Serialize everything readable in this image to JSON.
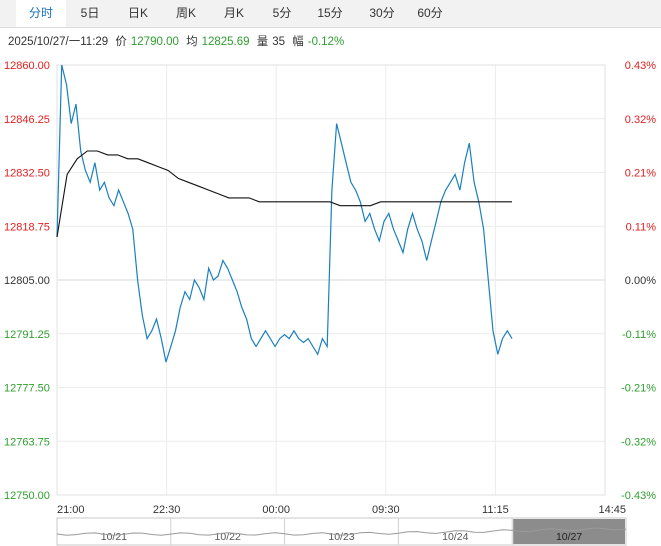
{
  "tabs": [
    {
      "label": "分时",
      "active": true
    },
    {
      "label": "5日",
      "active": false
    },
    {
      "label": "日K",
      "active": false
    },
    {
      "label": "周K",
      "active": false
    },
    {
      "label": "月K",
      "active": false
    },
    {
      "label": "5分",
      "active": false
    },
    {
      "label": "15分",
      "active": false
    },
    {
      "label": "30分",
      "active": false
    },
    {
      "label": "60分",
      "active": false
    }
  ],
  "info": {
    "datetime": "2025/10/27/一11:29",
    "price_label": "价",
    "price": "12790.00",
    "avg_label": "均",
    "avg": "12825.69",
    "vol_label": "量",
    "vol": "35",
    "chg_label": "幅",
    "chg": "-0.12%"
  },
  "colors": {
    "up": "#e02020",
    "down": "#2e9e2e",
    "flat": "#333333",
    "price_line": "#1a7fc0",
    "avg_line": "#111111"
  },
  "chart_data": {
    "type": "line",
    "y_left_ticks": [
      "12860.00",
      "12846.25",
      "12832.50",
      "12818.75",
      "12805.00",
      "12791.25",
      "12777.50",
      "12763.75",
      "12750.00"
    ],
    "y_right_ticks": [
      "0.43%",
      "0.32%",
      "0.21%",
      "0.11%",
      "0.00%",
      "-0.11%",
      "-0.21%",
      "-0.32%",
      "-0.43%"
    ],
    "x_ticks": [
      "21:00",
      "22:30",
      "00:00",
      "09:30",
      "11:15",
      "14:45"
    ],
    "ylim": [
      12750,
      12860
    ],
    "series": [
      {
        "role": "price",
        "values": [
          12816,
          12860,
          12855,
          12845,
          12850,
          12838,
          12833,
          12830,
          12835,
          12828,
          12830,
          12826,
          12824,
          12828,
          12825,
          12822,
          12818,
          12805,
          12796,
          12790,
          12792,
          12795,
          12790,
          12784,
          12788,
          12792,
          12798,
          12802,
          12800,
          12805,
          12803,
          12800,
          12808,
          12805,
          12806,
          12810,
          12808,
          12805,
          12802,
          12798,
          12795,
          12790,
          12788,
          12790,
          12792,
          12790,
          12788,
          12790,
          12791,
          12790,
          12792,
          12790,
          12789,
          12790,
          12788,
          12786,
          12790,
          12788,
          12828,
          12845,
          12840,
          12835,
          12830,
          12828,
          12825,
          12820,
          12822,
          12818,
          12815,
          12820,
          12822,
          12818,
          12815,
          12812,
          12818,
          12822,
          12818,
          12815,
          12810,
          12815,
          12820,
          12825,
          12828,
          12830,
          12832,
          12828,
          12835,
          12840,
          12830,
          12825,
          12818,
          12805,
          12792,
          12786,
          12790,
          12792,
          12790
        ]
      },
      {
        "role": "average",
        "values": [
          12816,
          12832,
          12836,
          12838,
          12838,
          12837,
          12837,
          12836,
          12836,
          12835,
          12834,
          12833,
          12831,
          12830,
          12829,
          12828,
          12827,
          12826,
          12826,
          12826,
          12825,
          12825,
          12825,
          12825,
          12825,
          12825,
          12825,
          12825,
          12824,
          12824,
          12824,
          12824,
          12825,
          12825,
          12825,
          12825,
          12825,
          12825,
          12825,
          12825,
          12825,
          12825,
          12825,
          12825,
          12825,
          12825
        ]
      }
    ]
  },
  "scroll": {
    "dates": [
      "10/21",
      "10/22",
      "10/23",
      "10/24",
      "10/27"
    ]
  }
}
